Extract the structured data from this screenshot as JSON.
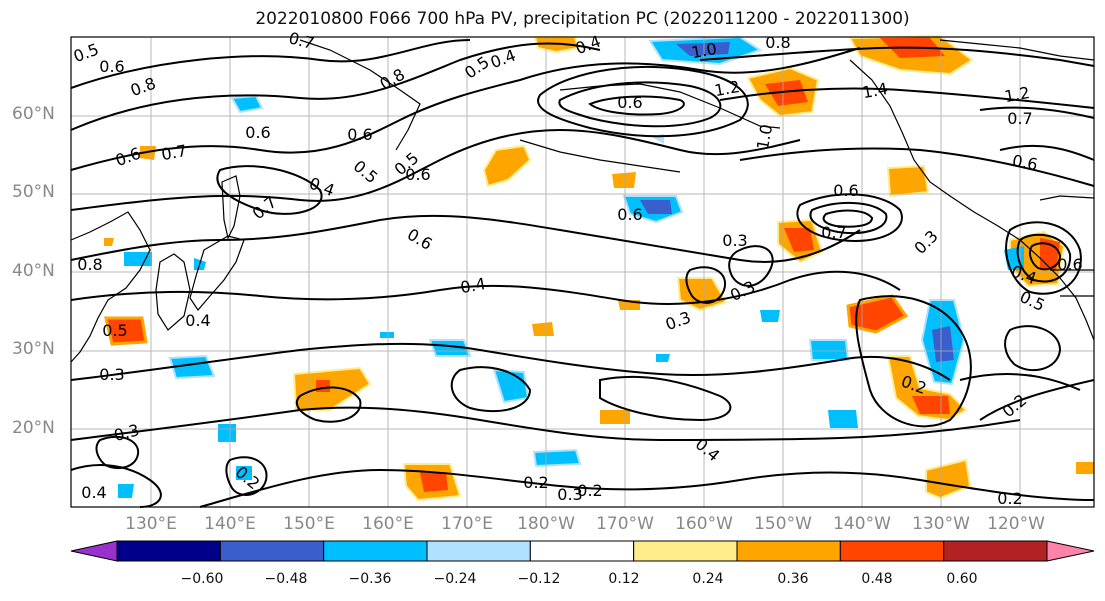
{
  "title": "2022010800 F066 700 hPa PV, precipitation PC (2022011200 - 2022011300)",
  "lat_labels": [
    "60°N",
    "50°N",
    "40°N",
    "30°N",
    "20°N"
  ],
  "lon_labels": [
    "130°E",
    "140°E",
    "150°E",
    "160°E",
    "170°E",
    "180°W",
    "170°W",
    "160°W",
    "150°W",
    "140°W",
    "130°W",
    "120°W"
  ],
  "colorbar": {
    "ticks": [
      "−0.60",
      "−0.48",
      "−0.36",
      "−0.24",
      "−0.12",
      "0.12",
      "0.24",
      "0.36",
      "0.48",
      "0.60"
    ],
    "colors": [
      "#9932cc",
      "#00008b",
      "#3a5fcd",
      "#00bfff",
      "#b0e2ff",
      "#ffffff",
      "#ffec8b",
      "#ffa500",
      "#ff4500",
      "#b22222",
      "#ff82ab"
    ]
  },
  "contour_labels": [
    "0.5",
    "0.6",
    "0.8",
    "0.7",
    "0.4",
    "0.5",
    "0.4",
    "1.0",
    "0.8",
    "0.6",
    "0.8",
    "1.2",
    "1.4",
    "1.2",
    "0.7",
    "0.6",
    "1.0",
    "0.6",
    "0.7",
    "0.6",
    "0.5",
    "0.6",
    "0.4",
    "0.7",
    "0.5",
    "0.6",
    "0.6",
    "0.6",
    "0.3",
    "0.7",
    "0.3",
    "0.6",
    "0.4",
    "0.3",
    "0.4",
    "0.6",
    "0.5",
    "0.8",
    "0.5",
    "0.4",
    "0.3",
    "0.3",
    "0.2",
    "0.3",
    "0.2",
    "0.4",
    "0.2",
    "0.3",
    "0.2",
    "0.2",
    "0.4",
    "0.2"
  ]
}
